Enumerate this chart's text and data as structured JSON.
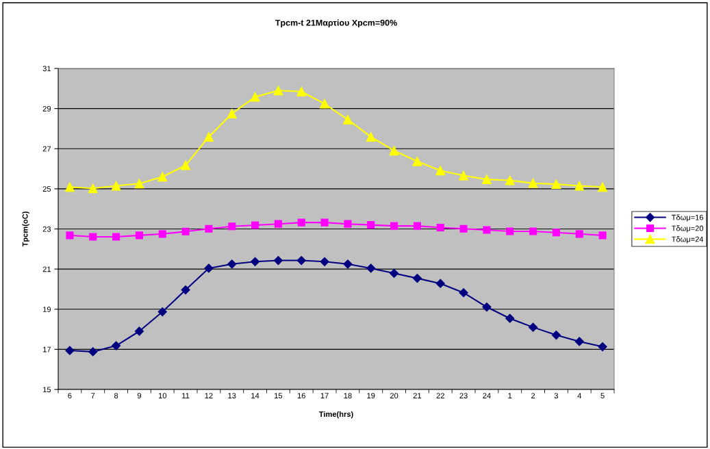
{
  "chart_data": {
    "type": "line",
    "title": "Tpcm-t 21Μαρτίου Xpcm=90%",
    "xlabel": "Time(hrs)",
    "ylabel": "Tpcm(oC)",
    "categories": [
      "6",
      "7",
      "8",
      "9",
      "10",
      "11",
      "12",
      "13",
      "14",
      "15",
      "16",
      "17",
      "18",
      "19",
      "20",
      "21",
      "22",
      "23",
      "24",
      "1",
      "2",
      "3",
      "4",
      "5"
    ],
    "series": [
      {
        "name": "Τδωμ=16",
        "color": "#000080",
        "marker": "diamond",
        "values": [
          16.94,
          16.88,
          17.18,
          17.9,
          18.87,
          19.96,
          21.04,
          21.25,
          21.37,
          21.43,
          21.43,
          21.37,
          21.25,
          21.04,
          20.79,
          20.54,
          20.28,
          19.82,
          19.11,
          18.54,
          18.1,
          17.71,
          17.39,
          17.13
        ]
      },
      {
        "name": "Τδωμ=20",
        "color": "#ff00ff",
        "marker": "square",
        "values": [
          22.68,
          22.61,
          22.61,
          22.68,
          22.75,
          22.87,
          23.01,
          23.13,
          23.19,
          23.25,
          23.32,
          23.32,
          23.25,
          23.2,
          23.15,
          23.15,
          23.07,
          23.01,
          22.95,
          22.88,
          22.88,
          22.82,
          22.75,
          22.68
        ]
      },
      {
        "name": "Τδωμ=24",
        "color": "#ffff00",
        "marker": "triangle",
        "values": [
          25.09,
          25.02,
          25.15,
          25.26,
          25.6,
          26.17,
          27.59,
          28.75,
          29.58,
          29.9,
          29.85,
          29.24,
          28.45,
          27.59,
          26.9,
          26.37,
          25.91,
          25.66,
          25.47,
          25.42,
          25.28,
          25.23,
          25.15,
          25.09
        ]
      }
    ],
    "ylim": [
      15,
      31
    ],
    "yticks": [
      15,
      17,
      19,
      21,
      23,
      25,
      27,
      29,
      31
    ],
    "grid": "y",
    "legend": "right",
    "line_style": "solid"
  }
}
